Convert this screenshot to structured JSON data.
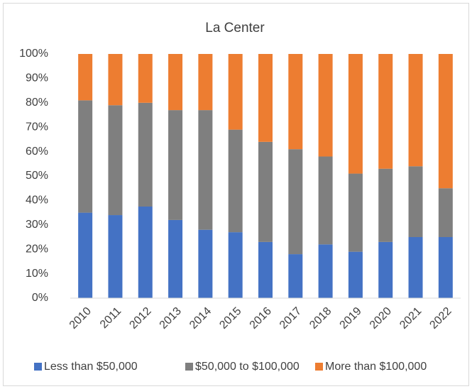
{
  "chart_data": {
    "type": "stacked_bar",
    "title": "La Center",
    "categories": [
      "2010",
      "2011",
      "2012",
      "2013",
      "2014",
      "2015",
      "2016",
      "2017",
      "2018",
      "2019",
      "2020",
      "2021",
      "2022"
    ],
    "series": [
      {
        "name": "Less than $50,000",
        "color": "#4472c4",
        "values": [
          35,
          34,
          37.5,
          32,
          28,
          27,
          23,
          18,
          22,
          19,
          23,
          25,
          25
        ]
      },
      {
        "name": "$50,000 to $100,000",
        "color": "#7f7f7f",
        "values": [
          46,
          45,
          42.5,
          45,
          49,
          42,
          41,
          43,
          36,
          32,
          30,
          29,
          20
        ]
      },
      {
        "name": "More than $100,000",
        "color": "#ed7d31",
        "values": [
          19,
          21,
          20,
          23,
          23,
          31,
          36,
          39,
          42,
          49,
          47,
          46,
          55
        ]
      }
    ],
    "ylim": [
      0,
      100
    ],
    "yticks": [
      {
        "value": 0,
        "label": "0%"
      },
      {
        "value": 10,
        "label": "10%"
      },
      {
        "value": 20,
        "label": "20%"
      },
      {
        "value": 30,
        "label": "30%"
      },
      {
        "value": 40,
        "label": "40%"
      },
      {
        "value": 50,
        "label": "50%"
      },
      {
        "value": 60,
        "label": "60%"
      },
      {
        "value": 70,
        "label": "70%"
      },
      {
        "value": 80,
        "label": "80%"
      },
      {
        "value": 90,
        "label": "90%"
      },
      {
        "value": 100,
        "label": "100%"
      }
    ],
    "grid": false,
    "legend": "bottom"
  }
}
